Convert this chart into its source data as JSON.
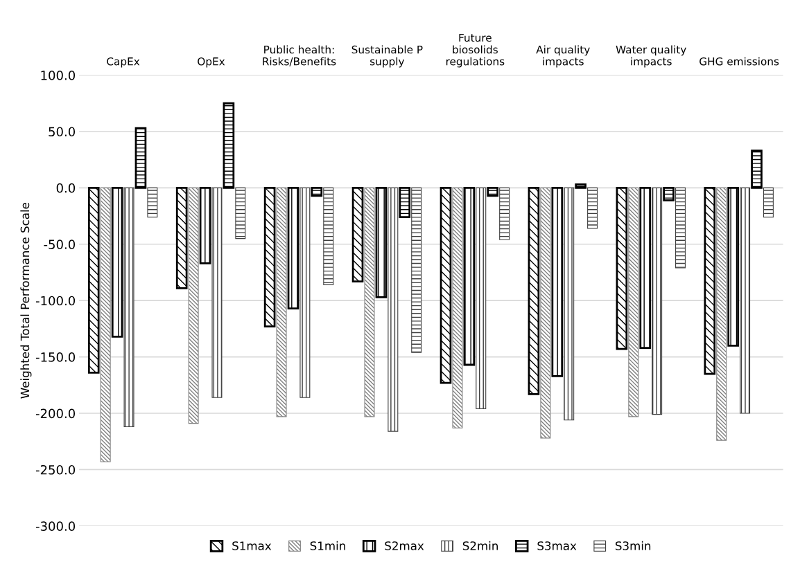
{
  "chart_data": {
    "type": "bar",
    "ylabel": "Weighted Total Performance Scale",
    "categories": [
      "CapEx",
      "OpEx",
      "Public health: Risks/Benefits",
      "Sustainable P supply",
      "Future biosolids regulations",
      "Air quality impacts",
      "Water quality impacts",
      "GHG emissions"
    ],
    "series": [
      {
        "name": "S1max",
        "color": "#000000",
        "values": [
          -164,
          -89,
          -123,
          -83,
          -173,
          -183,
          -143,
          -165
        ]
      },
      {
        "name": "S1min",
        "color": "#808080",
        "values": [
          -243,
          -209,
          -203,
          -203,
          -213,
          -222,
          -203,
          -224
        ]
      },
      {
        "name": "S2max",
        "color": "#000000",
        "values": [
          -132,
          -67,
          -107,
          -97,
          -157,
          -167,
          -142,
          -140
        ]
      },
      {
        "name": "S2min",
        "color": "#404040",
        "values": [
          -212,
          -186,
          -186,
          -216,
          -196,
          -206,
          -201,
          -200
        ]
      },
      {
        "name": "S3max",
        "color": "#000000",
        "values": [
          53,
          75,
          -7,
          -26,
          -7,
          3,
          -11,
          33
        ]
      },
      {
        "name": "S3min",
        "color": "#404040",
        "values": [
          -26,
          -45,
          -86,
          -146,
          -46,
          -36,
          -71,
          -26
        ]
      }
    ],
    "ylim": [
      -300,
      100
    ],
    "yticks": [
      {
        "value": -300,
        "label": "-300.0"
      },
      {
        "value": -250,
        "label": "-250.0"
      },
      {
        "value": -200,
        "label": "-200.0"
      },
      {
        "value": -150,
        "label": "-150.0"
      },
      {
        "value": -100,
        "label": "-100.0"
      },
      {
        "value": -50,
        "label": "-50.0"
      },
      {
        "value": 0,
        "label": "0.0"
      },
      {
        "value": 50,
        "label": "50.0"
      },
      {
        "value": 100,
        "label": "100.0"
      }
    ],
    "grid": "y",
    "legend": "bottom"
  }
}
